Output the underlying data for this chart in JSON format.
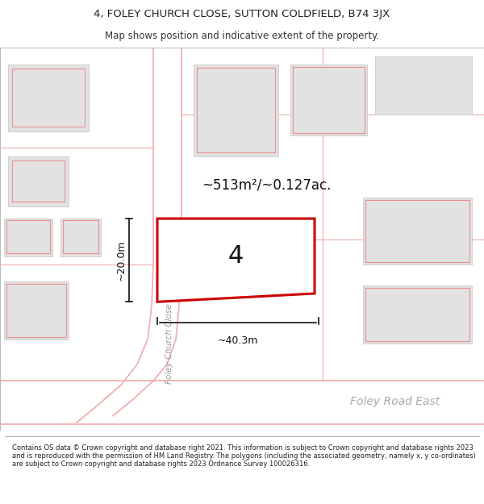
{
  "title_line1": "4, FOLEY CHURCH CLOSE, SUTTON COLDFIELD, B74 3JX",
  "title_line2": "Map shows position and indicative extent of the property.",
  "footer_text": "Contains OS data © Crown copyright and database right 2021. This information is subject to Crown copyright and database rights 2023 and is reproduced with the permission of HM Land Registry. The polygons (including the associated geometry, namely x, y co-ordinates) are subject to Crown copyright and database rights 2023 Ordnance Survey 100026316.",
  "map_bg": "#f7f7f7",
  "highlight_fill": "#ffffff",
  "highlight_outline": "#cc0000",
  "pink": "#f0aaaa",
  "red_bldg": "#e89090",
  "bldg_fill": "#e2e2e2",
  "bldg_gray": "#d0d0d0",
  "street_label_foley_church": "Foley Church Close",
  "street_label_foley_road": "Foley Road East",
  "area_label": "~513m²/~0.127ac.",
  "property_label": "4",
  "width_label": "~40.3m",
  "height_label": "~20.0m",
  "figsize": [
    6.0,
    6.25
  ],
  "dpi": 100
}
